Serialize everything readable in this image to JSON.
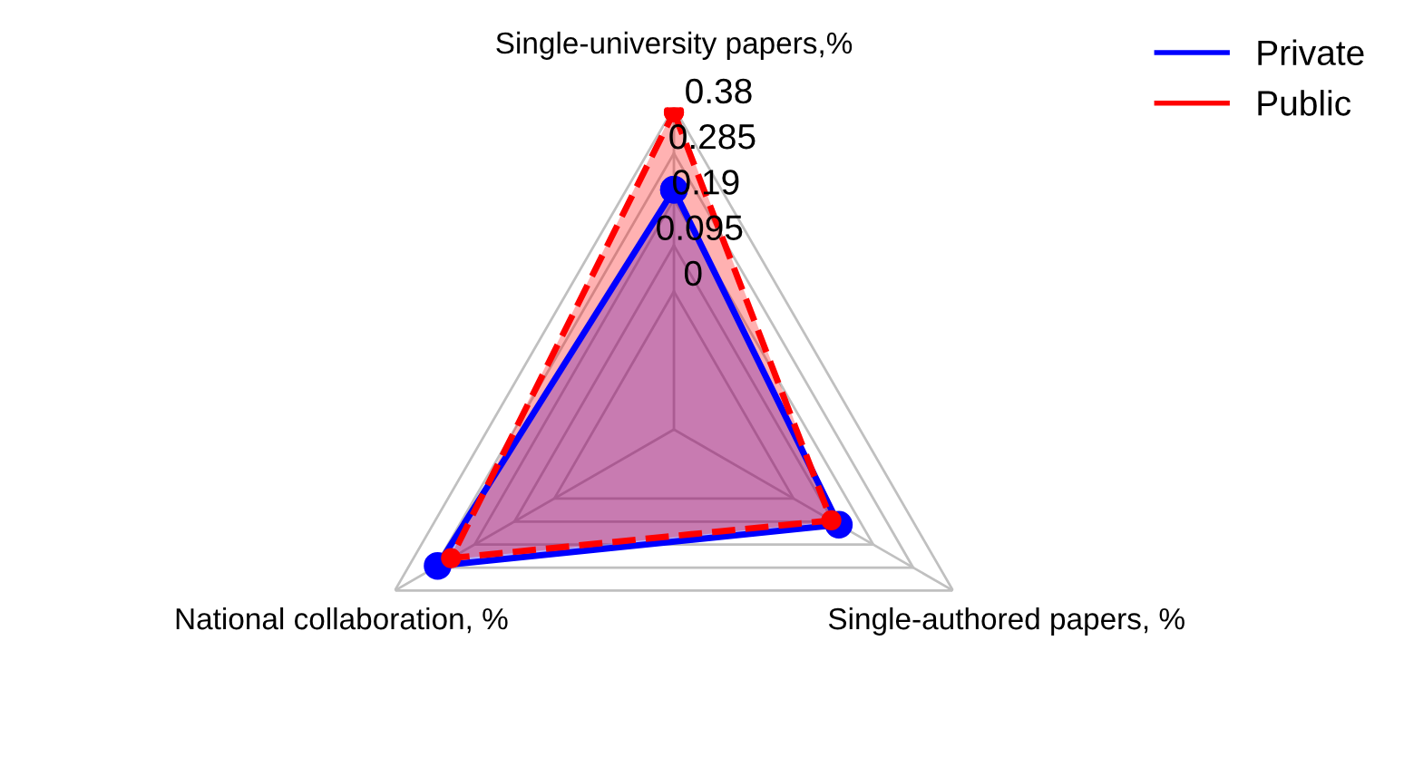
{
  "chart_data": {
    "type": "radar",
    "categories": [
      "Single-university papers,%",
      "Single-authored papers, %",
      "National collaboration, %"
    ],
    "ylim": [
      -0.285,
      0.38
    ],
    "yticks": [
      0,
      0.095,
      0.19,
      0.285,
      0.38
    ],
    "grid": true,
    "legend": "top right",
    "marker": "circle",
    "series": [
      {
        "name": "Private",
        "color": "#0000ff",
        "values": [
          0.21,
          0.108,
          0.278
        ],
        "line_style": "solid"
      },
      {
        "name": "Public",
        "color": "#ff0000",
        "values": [
          0.37,
          0.09,
          0.246
        ],
        "line_style": "dashed"
      }
    ]
  }
}
